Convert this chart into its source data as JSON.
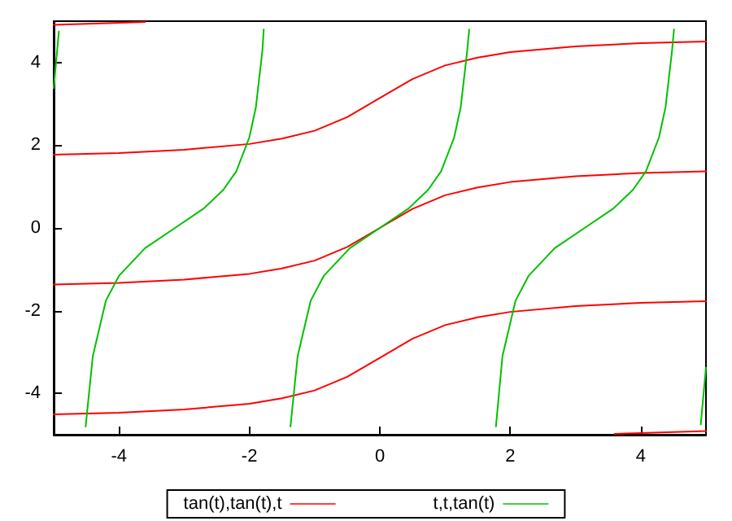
{
  "chart_data": {
    "type": "line",
    "xlim": [
      -5,
      5
    ],
    "xticks": [
      -4,
      -2,
      0,
      2,
      4
    ],
    "ylim": [
      -5,
      5
    ],
    "yticks": [
      -4,
      -2,
      0,
      2,
      4
    ],
    "grid": false,
    "legend": "bottom",
    "marker": "none",
    "line_style": "solid",
    "series": [
      {
        "name": "tan(t),tan(t),t",
        "color": "#ff0000",
        "x": [
          -5,
          -4,
          -3,
          -2,
          -1.5,
          -1,
          -0.5,
          0,
          0.5,
          1,
          1.5,
          2,
          3,
          4,
          5,
          null,
          -5,
          -4,
          -3,
          -2,
          -1.5,
          -1,
          -0.5,
          0,
          0.5,
          1,
          1.5,
          2,
          3,
          4,
          5,
          null,
          -5,
          -4,
          -3,
          -2,
          -1.5,
          -1,
          -0.5,
          0,
          0.5,
          1,
          1.5,
          2,
          3,
          4,
          5,
          null,
          -5,
          -4,
          -3.6,
          null,
          3.6,
          4,
          5
        ],
        "values": [
          -1.37,
          -1.33,
          -1.25,
          -1.11,
          -0.98,
          -0.79,
          -0.46,
          0,
          0.46,
          0.79,
          0.98,
          1.11,
          1.25,
          1.33,
          1.37,
          null,
          1.77,
          1.81,
          1.89,
          2.03,
          2.16,
          2.35,
          2.68,
          3.14,
          3.6,
          3.93,
          4.12,
          4.25,
          4.39,
          4.47,
          4.51,
          null,
          -4.51,
          -4.47,
          -4.39,
          -4.25,
          -4.12,
          -3.93,
          -3.6,
          -3.14,
          -2.68,
          -2.35,
          -2.16,
          -2.03,
          -1.89,
          -1.81,
          -1.77,
          null,
          4.91,
          4.96,
          4.98,
          null,
          -4.98,
          -4.96,
          -4.91
        ]
      },
      {
        "name": "t,t,tan(t)",
        "color": "#00c000",
        "x": [
          -4.51,
          -4.4,
          -4.2,
          -4.0,
          -3.6,
          -3.14,
          -2.7,
          -2.4,
          -2.2,
          -2.0,
          -1.9,
          -1.8,
          -1.78,
          null,
          -1.37,
          -1.26,
          -1.06,
          -0.86,
          -0.46,
          0,
          0.44,
          0.74,
          0.94,
          1.14,
          1.24,
          1.34,
          1.37,
          null,
          1.78,
          1.88,
          2.08,
          2.28,
          2.68,
          3.14,
          3.58,
          3.88,
          4.08,
          4.28,
          4.38,
          4.48,
          4.51,
          null,
          -5,
          -4.92,
          null,
          4.92,
          5
        ],
        "values": [
          -4.8,
          -3.1,
          -1.76,
          -1.16,
          -0.49,
          0,
          0.47,
          0.92,
          1.37,
          2.19,
          2.92,
          4.29,
          4.8,
          null,
          -4.8,
          -3.1,
          -1.76,
          -1.16,
          -0.49,
          0,
          0.47,
          0.92,
          1.37,
          2.19,
          2.92,
          4.29,
          4.8,
          null,
          -4.8,
          -3.1,
          -1.76,
          -1.16,
          -0.49,
          0,
          0.47,
          0.92,
          1.37,
          2.19,
          2.92,
          4.29,
          4.8,
          null,
          3.38,
          4.75,
          null,
          -4.75,
          -3.38
        ]
      }
    ]
  }
}
